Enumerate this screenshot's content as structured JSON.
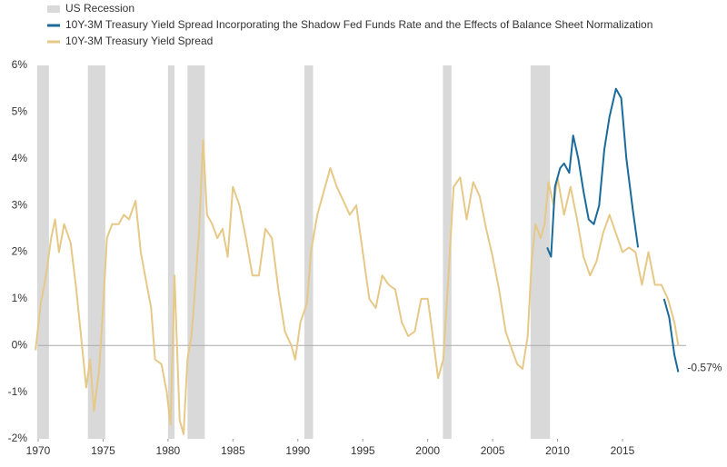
{
  "chart_data": {
    "type": "line",
    "legend": [
      "US Recession"
    ],
    "recession_color": "#d9d9d9",
    "recessions": [
      [
        1969.92,
        1970.83
      ],
      [
        1973.83,
        1975.17
      ],
      [
        1980.0,
        1980.5
      ],
      [
        1981.5,
        1982.83
      ],
      [
        1990.5,
        1991.17
      ],
      [
        2001.17,
        2001.83
      ],
      [
        2007.92,
        2009.42
      ]
    ],
    "series": [
      {
        "name": "10Y-3M Treasury Yield Spread Incorporating the Shadow Fed Funds Rate and the Effects of Balance Sheet Normalization",
        "color": "#1a6a9a",
        "x": [
          2009.2,
          2009.5,
          2009.8,
          2010.2,
          2010.5,
          2010.9,
          2011.2,
          2011.6,
          2012.0,
          2012.4,
          2012.8,
          2013.2,
          2013.6,
          2014.0,
          2014.5,
          2014.9,
          2015.3,
          2015.8,
          2016.2,
          null,
          2018.2,
          2018.6,
          2019.0,
          2019.3
        ],
        "values": [
          2.1,
          1.9,
          3.4,
          3.8,
          3.9,
          3.7,
          4.5,
          4.0,
          3.3,
          2.7,
          2.6,
          3.0,
          4.2,
          4.9,
          5.5,
          5.3,
          4.0,
          2.9,
          2.1,
          null,
          1.0,
          0.6,
          -0.2,
          -0.57
        ],
        "value_labels": [
          null,
          null,
          null,
          null,
          null,
          null,
          null,
          null,
          null,
          null,
          null,
          null,
          null,
          null,
          null,
          null,
          null,
          null,
          null,
          null,
          null,
          null,
          null,
          "-0.57%"
        ]
      },
      {
        "name": "10Y-3M Treasury Yield Spread",
        "color": "#e6c887",
        "x": [
          1969.8,
          1970.2,
          1970.6,
          1971.0,
          1971.3,
          1971.6,
          1972.0,
          1972.5,
          1972.9,
          1973.3,
          1973.7,
          1974.0,
          1974.3,
          1974.7,
          1975.0,
          1975.3,
          1975.7,
          1976.2,
          1976.6,
          1977.0,
          1977.5,
          1977.9,
          1978.3,
          1978.7,
          1979.0,
          1979.5,
          1979.9,
          1980.2,
          1980.5,
          1980.9,
          1981.2,
          1981.5,
          1981.8,
          1982.0,
          1982.4,
          1982.7,
          1983.0,
          1983.4,
          1983.8,
          1984.2,
          1984.6,
          1985.0,
          1985.5,
          1986.0,
          1986.5,
          1987.0,
          1987.5,
          1988.0,
          1988.5,
          1989.0,
          1989.5,
          1989.8,
          1990.2,
          1990.7,
          1991.0,
          1991.5,
          1992.0,
          1992.5,
          1993.0,
          1993.5,
          1994.0,
          1994.5,
          1995.0,
          1995.5,
          1996.0,
          1996.5,
          1997.0,
          1997.5,
          1998.0,
          1998.5,
          1999.0,
          1999.5,
          2000.0,
          2000.3,
          2000.8,
          2001.2,
          2001.6,
          2002.0,
          2002.5,
          2003.0,
          2003.5,
          2004.0,
          2004.5,
          2005.0,
          2005.5,
          2006.0,
          2006.5,
          2006.9,
          2007.3,
          2007.7,
          2008.0,
          2008.3,
          2008.7,
          2009.0,
          2009.3,
          2009.7,
          2010.0,
          2010.5,
          2011.0,
          2011.5,
          2012.0,
          2012.5,
          2013.0,
          2013.5,
          2014.0,
          2014.5,
          2015.0,
          2015.5,
          2016.0,
          2016.5,
          2017.0,
          2017.5,
          2018.0,
          2018.5,
          2019.0,
          2019.3
        ],
        "values": [
          -0.1,
          0.9,
          1.5,
          2.3,
          2.7,
          2.0,
          2.6,
          2.2,
          1.3,
          0.2,
          -0.9,
          -0.3,
          -1.4,
          -0.5,
          0.8,
          2.3,
          2.6,
          2.6,
          2.8,
          2.7,
          3.1,
          2.0,
          1.4,
          0.8,
          -0.3,
          -0.4,
          -1.0,
          -1.7,
          1.5,
          -1.6,
          -1.9,
          -0.3,
          0.2,
          0.9,
          2.5,
          4.4,
          2.8,
          2.6,
          2.3,
          2.5,
          1.9,
          3.4,
          3.0,
          2.3,
          1.5,
          1.5,
          2.5,
          2.3,
          1.2,
          0.3,
          0.0,
          -0.3,
          0.5,
          0.9,
          2.0,
          2.8,
          3.3,
          3.8,
          3.4,
          3.1,
          2.8,
          3.0,
          2.0,
          1.0,
          0.8,
          1.5,
          1.3,
          1.2,
          0.5,
          0.2,
          0.3,
          1.0,
          1.0,
          0.4,
          -0.7,
          -0.3,
          1.5,
          3.4,
          3.6,
          2.7,
          3.5,
          3.2,
          2.5,
          1.9,
          1.2,
          0.3,
          -0.1,
          -0.4,
          -0.5,
          0.2,
          1.8,
          2.6,
          2.3,
          2.6,
          3.5,
          3.0,
          3.6,
          2.8,
          3.4,
          2.7,
          1.9,
          1.5,
          1.8,
          2.4,
          2.8,
          2.4,
          2.0,
          2.1,
          2.0,
          1.3,
          2.0,
          1.3,
          1.3,
          1.0,
          0.5,
          0.0
        ]
      }
    ],
    "xlim": [
      1970,
      2022
    ],
    "xticks": [
      1970,
      1975,
      1980,
      1985,
      1990,
      1995,
      2000,
      2005,
      2010,
      2015
    ],
    "ylim": [
      -2,
      6
    ],
    "yticks": [
      {
        "value": -2,
        "label": "-2%"
      },
      {
        "value": -1,
        "label": "-1%"
      },
      {
        "value": 0,
        "label": "0%"
      },
      {
        "value": 1,
        "label": "1%"
      },
      {
        "value": 2,
        "label": "2%"
      },
      {
        "value": 3,
        "label": "3%"
      },
      {
        "value": 4,
        "label": "4%"
      },
      {
        "value": 5,
        "label": "5%"
      },
      {
        "value": 6,
        "label": "6%"
      }
    ]
  }
}
